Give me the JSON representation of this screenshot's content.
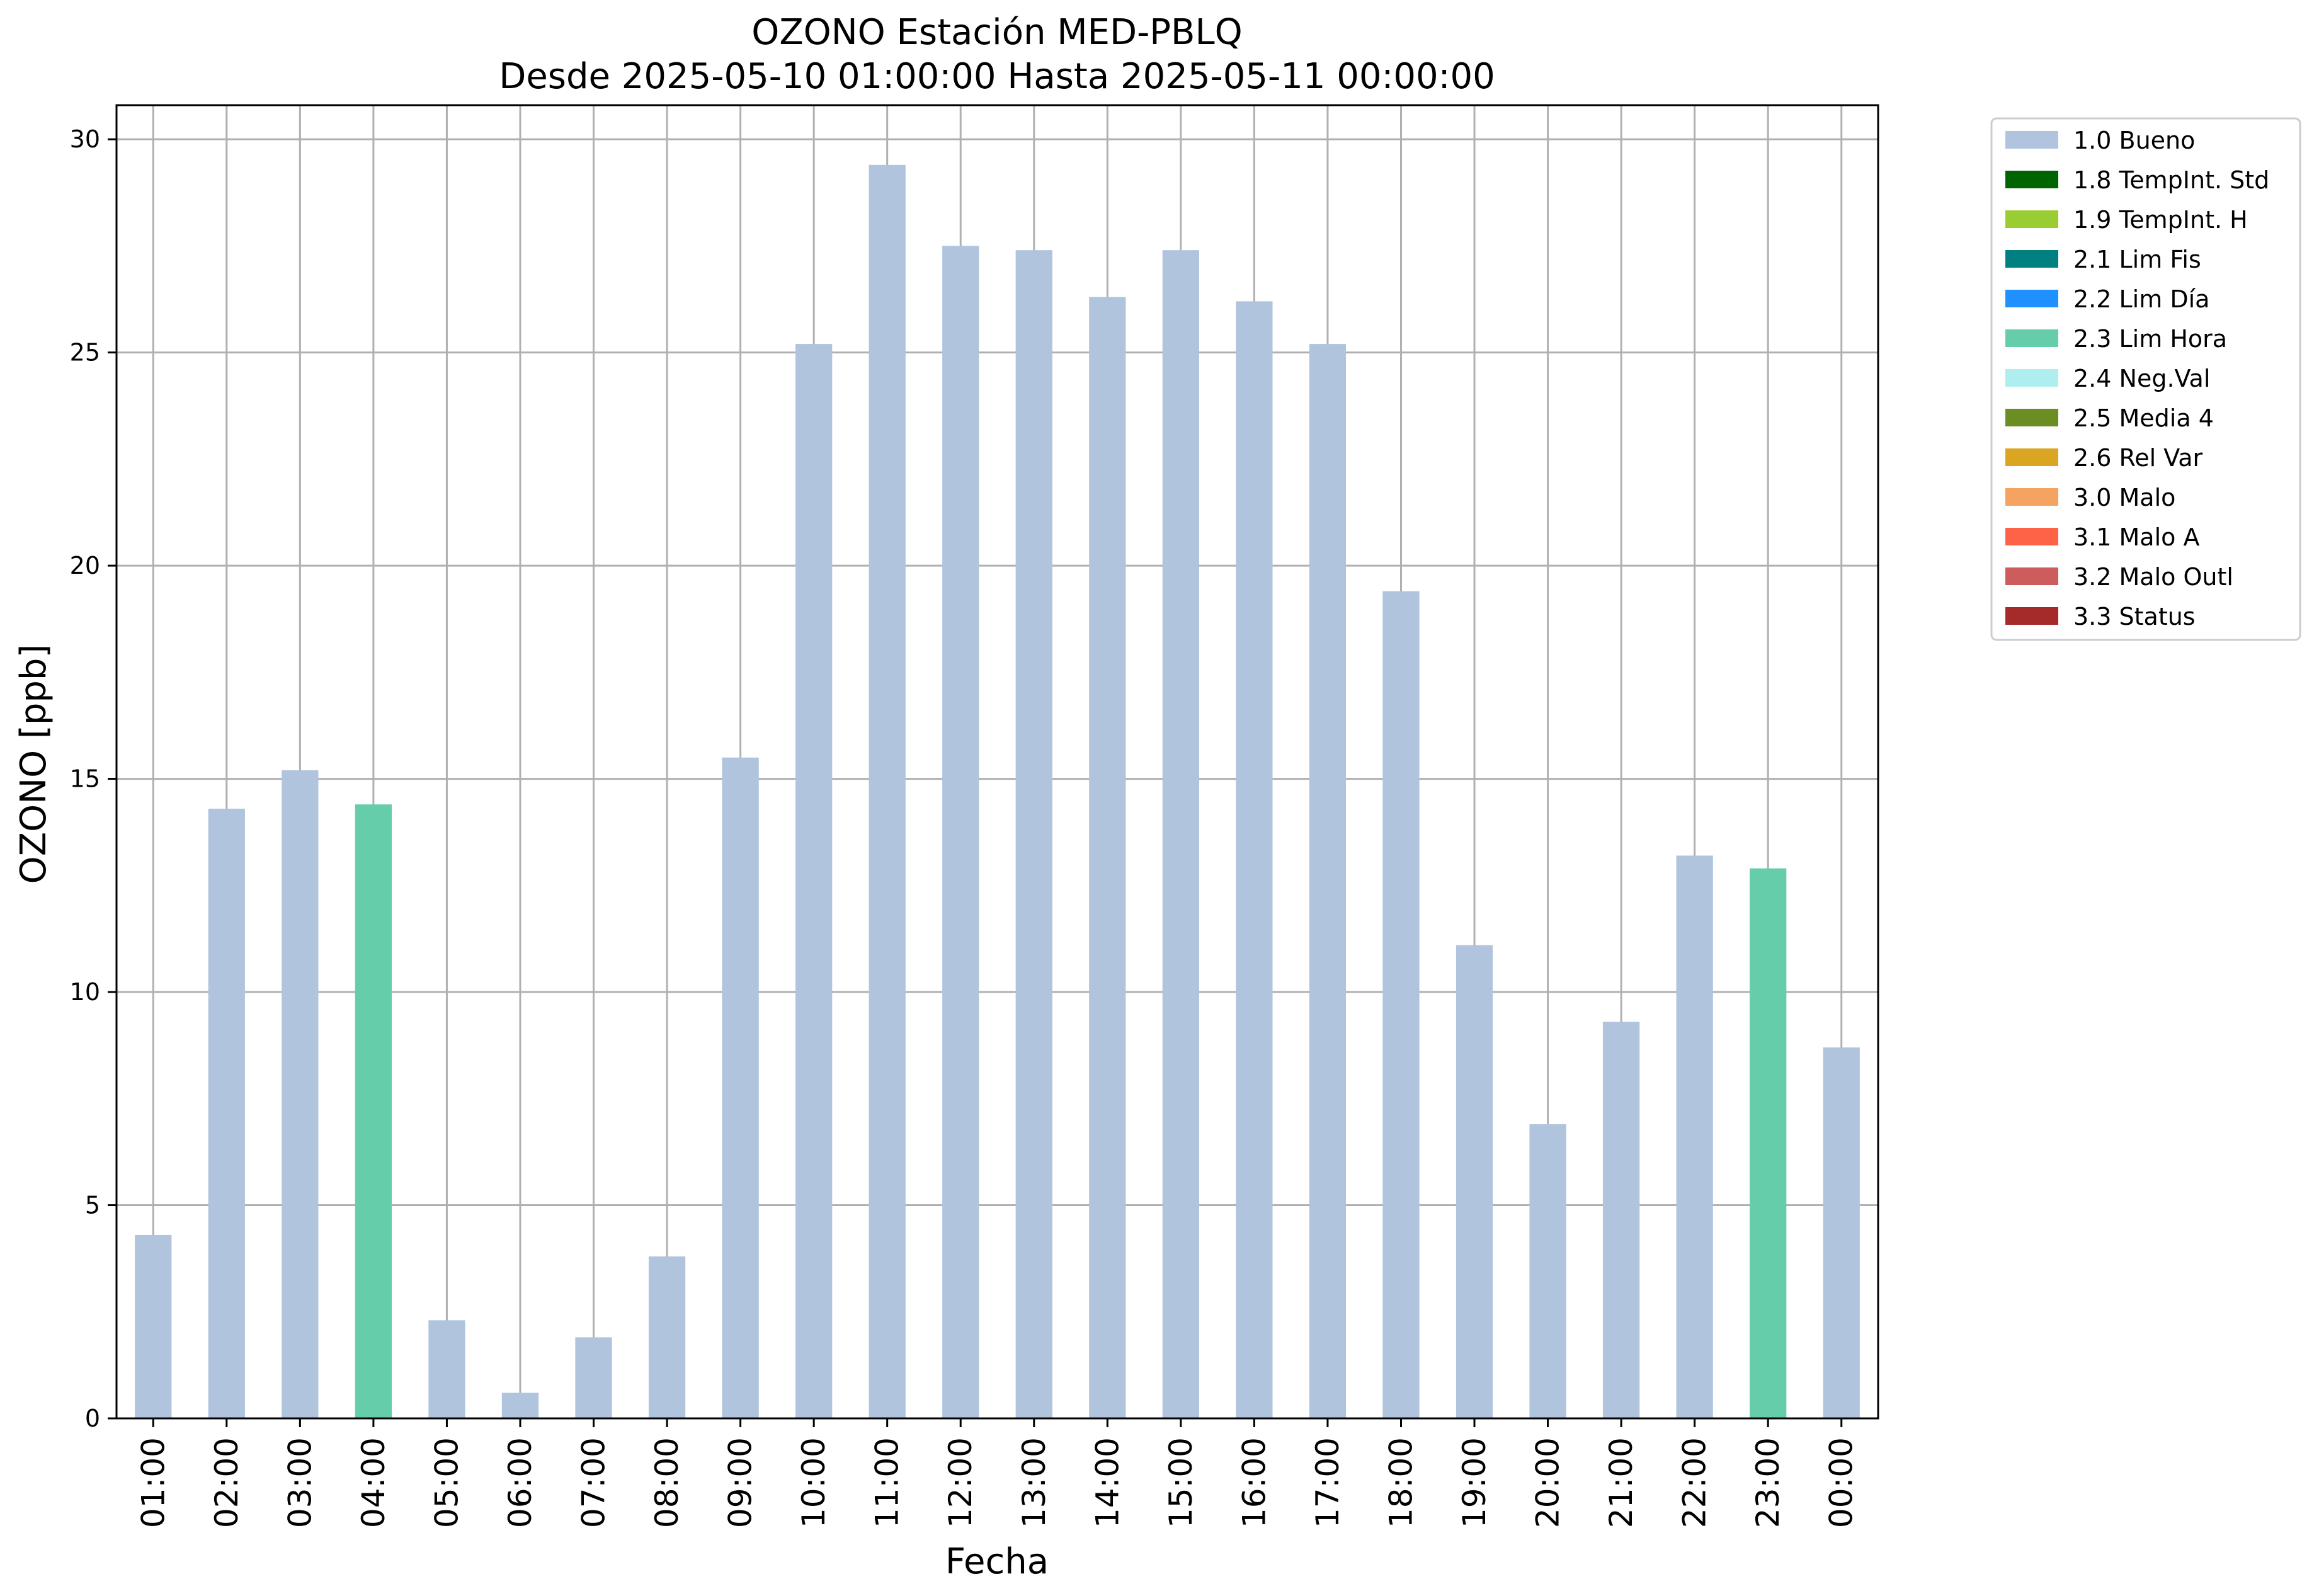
{
  "chart_data": {
    "type": "bar",
    "title": "OZONO Estación MED-PBLQ",
    "subtitle": "Desde 2025-05-10 01:00:00 Hasta 2025-05-11 00:00:00",
    "xlabel": "Fecha",
    "ylabel": "OZONO [ppb]",
    "ylim": [
      0,
      30.8
    ],
    "yticks": [
      0,
      5,
      10,
      15,
      20,
      25,
      30
    ],
    "grid": true,
    "legend_position": "outside-top-right",
    "categories": [
      "01:00",
      "02:00",
      "03:00",
      "04:00",
      "05:00",
      "06:00",
      "07:00",
      "08:00",
      "09:00",
      "10:00",
      "11:00",
      "12:00",
      "13:00",
      "14:00",
      "15:00",
      "16:00",
      "17:00",
      "18:00",
      "19:00",
      "20:00",
      "21:00",
      "22:00",
      "23:00",
      "00:00"
    ],
    "values": [
      4.3,
      14.3,
      15.2,
      14.4,
      2.3,
      0.6,
      1.9,
      3.8,
      15.5,
      25.2,
      29.4,
      27.5,
      27.4,
      26.3,
      27.4,
      26.2,
      25.2,
      19.4,
      11.1,
      6.9,
      9.3,
      13.2,
      12.9,
      8.7
    ],
    "flags": [
      "1.0 Bueno",
      "1.0 Bueno",
      "1.0 Bueno",
      "2.3 Lim Hora",
      "1.0 Bueno",
      "1.0 Bueno",
      "1.0 Bueno",
      "1.0 Bueno",
      "1.0 Bueno",
      "1.0 Bueno",
      "1.0 Bueno",
      "1.0 Bueno",
      "1.0 Bueno",
      "1.0 Bueno",
      "1.0 Bueno",
      "1.0 Bueno",
      "1.0 Bueno",
      "1.0 Bueno",
      "1.0 Bueno",
      "1.0 Bueno",
      "1.0 Bueno",
      "1.0 Bueno",
      "2.3 Lim Hora",
      "1.0 Bueno"
    ],
    "legend": [
      {
        "label": "1.0 Bueno",
        "color": "#b0c4de"
      },
      {
        "label": "1.8 TempInt. Std",
        "color": "#006400"
      },
      {
        "label": "1.9 TempInt. H",
        "color": "#9acd32"
      },
      {
        "label": "2.1 Lim Fis",
        "color": "#008080"
      },
      {
        "label": "2.2 Lim Día",
        "color": "#1e90ff"
      },
      {
        "label": "2.3 Lim Hora",
        "color": "#66cdaa"
      },
      {
        "label": "2.4 Neg.Val",
        "color": "#afeeee"
      },
      {
        "label": "2.5 Media 4",
        "color": "#6b8e23"
      },
      {
        "label": "2.6 Rel Var",
        "color": "#daa520"
      },
      {
        "label": "3.0 Malo",
        "color": "#f4a460"
      },
      {
        "label": "3.1 Malo A",
        "color": "#ff6347"
      },
      {
        "label": "3.2 Malo Outl",
        "color": "#cd5c5c"
      },
      {
        "label": "3.3 Status",
        "color": "#a52a2a"
      }
    ]
  }
}
